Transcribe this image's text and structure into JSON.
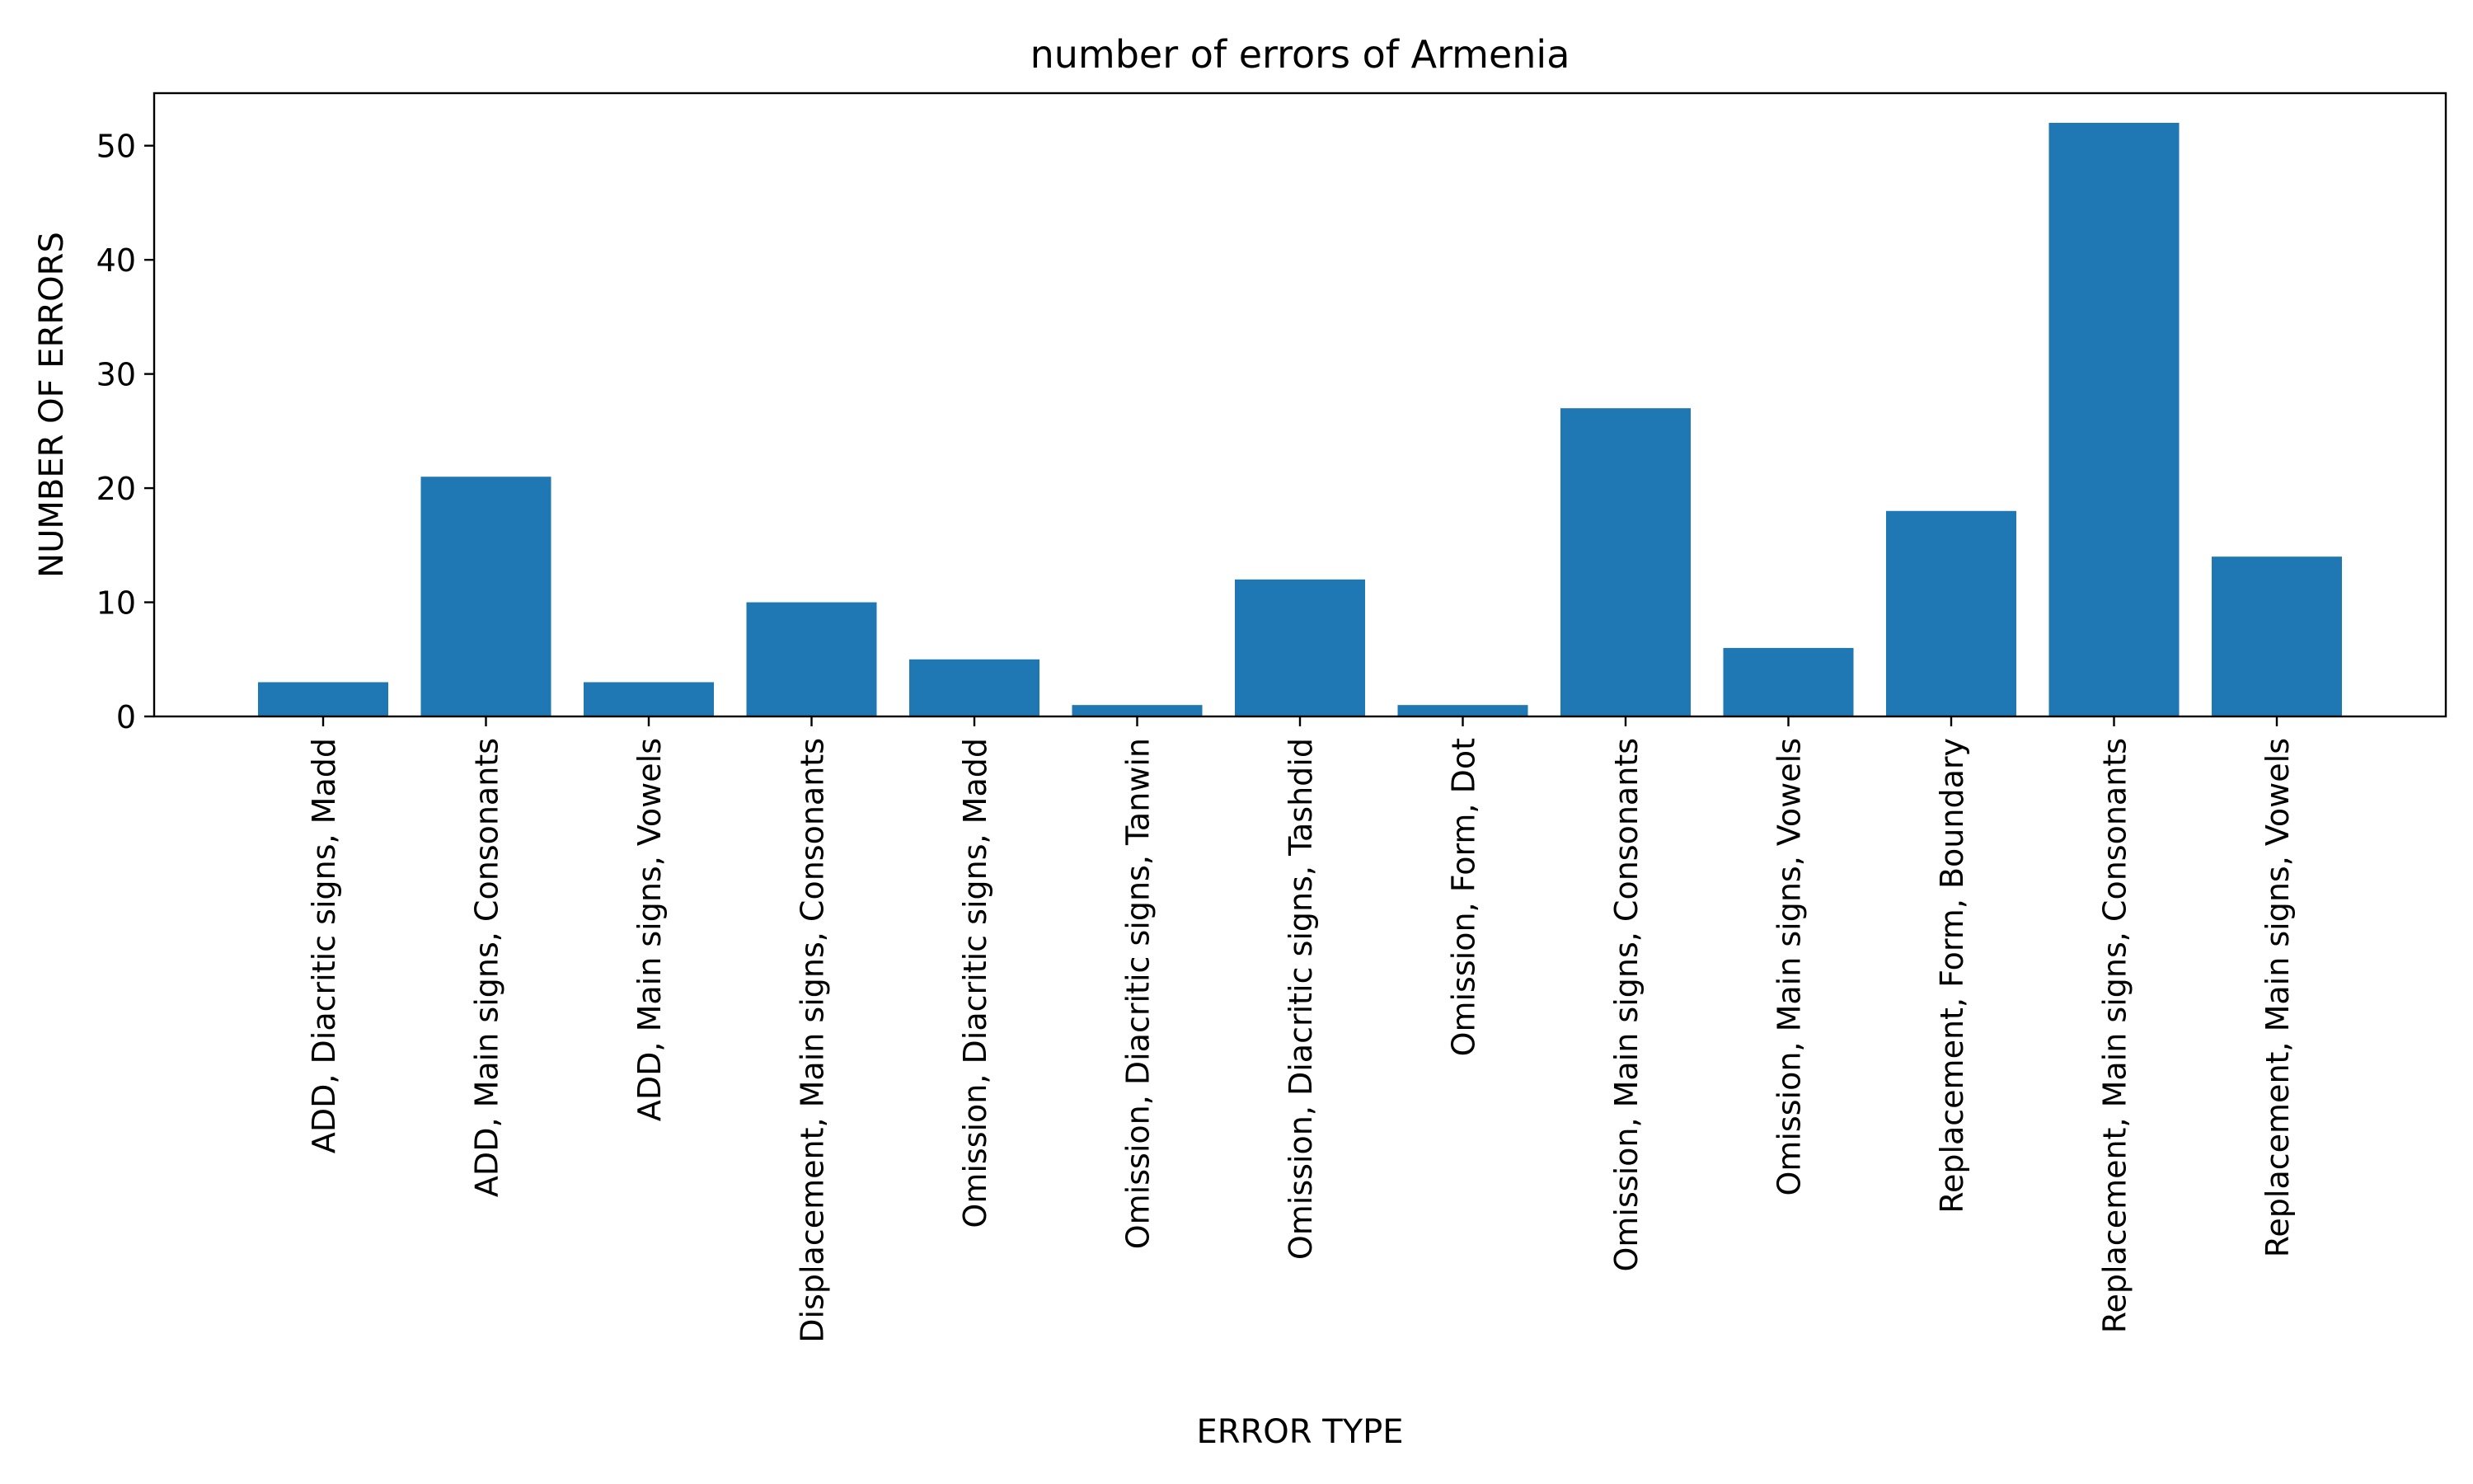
{
  "chart_data": {
    "type": "bar",
    "title": "number of errors of Armenia",
    "xlabel": "ERROR TYPE",
    "ylabel": "NUMBER OF ERRORS",
    "categories": [
      "ADD, Diacritic signs, Madd",
      "ADD, Main signs, Consonants",
      "ADD, Main signs, Vowels",
      "Displacement, Main signs, Consonants",
      "Omission, Diacritic signs, Madd",
      "Omission, Diacritic signs, Tanwin",
      "Omission, Diacritic signs, Tashdid",
      "Omission, Form, Dot",
      "Omission, Main signs, Consonants",
      "Omission, Main signs, Vowels",
      "Replacement, Form, Boundary",
      "Replacement, Main signs, Consonants",
      "Replacement, Main signs, Vowels"
    ],
    "values": [
      3,
      21,
      3,
      10,
      5,
      1,
      12,
      1,
      27,
      6,
      18,
      52,
      14
    ],
    "ylim": [
      0,
      54.6
    ],
    "yticks": [
      0,
      10,
      20,
      30,
      40,
      50
    ],
    "grid": false,
    "bar_color": "#1f77b4"
  }
}
